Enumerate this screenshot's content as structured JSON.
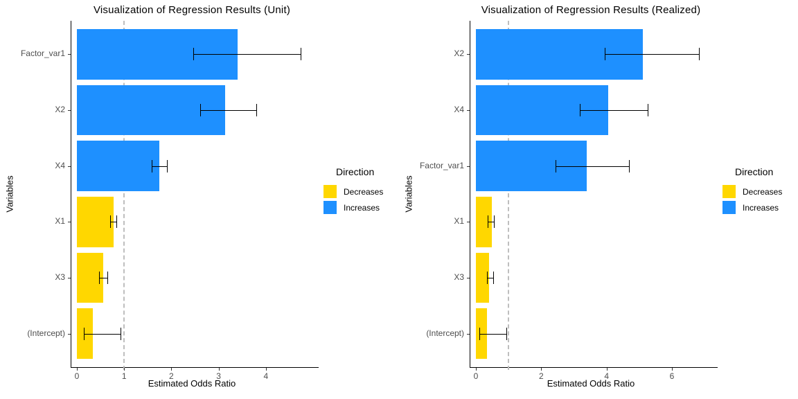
{
  "page": {
    "background": "#FFFFFF"
  },
  "colors": {
    "increase": "#1E90FF",
    "decrease": "#FFD700",
    "ref_line": "#BEBEBE",
    "error_bar": "#000000",
    "axis": "#000000",
    "tick_label": "#4D4D4D"
  },
  "legend": {
    "title": "Direction",
    "items": [
      {
        "label": "Decreases",
        "color": "#FFD700"
      },
      {
        "label": "Increases",
        "color": "#1E90FF"
      }
    ]
  },
  "chart_data": [
    {
      "type": "bar",
      "orientation": "horizontal",
      "title": "Visualization of Regression Results (Unit)",
      "xlabel": "Estimated Odds Ratio",
      "ylabel": "Variables",
      "categories": [
        "Factor_var1",
        "X2",
        "X4",
        "X1",
        "X3",
        "(Intercept)"
      ],
      "values": [
        3.4,
        3.14,
        1.74,
        0.77,
        0.56,
        0.34
      ],
      "ci_low": [
        2.46,
        2.61,
        1.58,
        0.7,
        0.47,
        0.14
      ],
      "ci_high": [
        4.73,
        3.8,
        1.91,
        0.84,
        0.64,
        0.93
      ],
      "direction": [
        "Increases",
        "Increases",
        "Increases",
        "Decreases",
        "Decreases",
        "Decreases"
      ],
      "x_ticks": [
        0,
        1,
        2,
        3,
        4
      ],
      "xlim": [
        0,
        5.0
      ],
      "ref_line_x": 1,
      "grid": false,
      "legend_position": "right"
    },
    {
      "type": "bar",
      "orientation": "horizontal",
      "title": "Visualization of Regression Results (Realized)",
      "xlabel": "Estimated Odds Ratio",
      "ylabel": "Variables",
      "categories": [
        "X2",
        "X4",
        "Factor_var1",
        "X1",
        "X3",
        "(Intercept)"
      ],
      "values": [
        5.11,
        4.06,
        3.39,
        0.48,
        0.41,
        0.33
      ],
      "ci_low": [
        3.94,
        3.18,
        2.44,
        0.35,
        0.33,
        0.11
      ],
      "ci_high": [
        6.82,
        5.26,
        4.69,
        0.56,
        0.54,
        0.93
      ],
      "direction": [
        "Increases",
        "Increases",
        "Increases",
        "Decreases",
        "Decreases",
        "Decreases"
      ],
      "x_ticks": [
        0,
        2,
        4,
        6
      ],
      "xlim": [
        0,
        7.23
      ],
      "ref_line_x": 1,
      "grid": false,
      "legend_position": "right"
    }
  ]
}
